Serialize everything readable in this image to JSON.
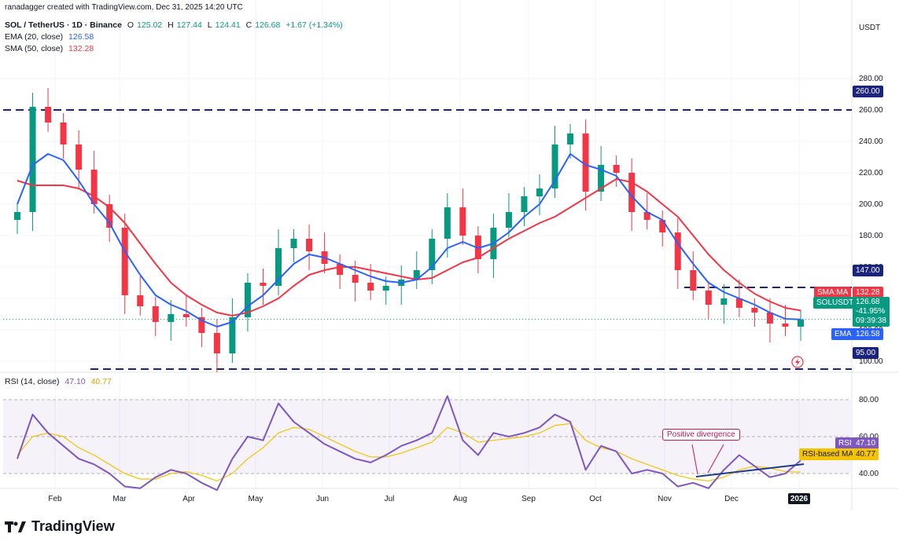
{
  "header": {
    "credit": "ranadagger created with TradingView.com, Dec 31, 2025 14:20 UTC",
    "symbol": "SOL / TetherUS · 1D · Binance",
    "o_label": "O",
    "o": "125.02",
    "h_label": "H",
    "h": "127.44",
    "l_label": "L",
    "l": "124.41",
    "c_label": "C",
    "c": "126.68",
    "change": "+1.67 (+1.34%)",
    "ema_label": "EMA (20, close)",
    "ema_value": "126.58",
    "sma_label": "SMA (50, close)",
    "sma_value": "132.28",
    "rsi_label": "RSI (14, close)",
    "rsi_value": "47.10",
    "rsi_ma_value": "40.77"
  },
  "axis_tags": {
    "currency": "USDT",
    "level_260": "260.00",
    "level_147": "147.00",
    "level_95": "95.00",
    "sma_tag": "SMA:MA",
    "sma_tag_value": "132.28",
    "price_tag": "SOLUSDT",
    "price_value": "126.68",
    "price_change": "-41.95%",
    "countdown": "09:39:38",
    "ema_tag": "EMA",
    "ema_tag_value": "126.58",
    "rsi_tag": "RSI",
    "rsi_tag_value": "47.10",
    "rsi_ma_tag": "RSI-based MA",
    "rsi_ma_tag_value": "40.77"
  },
  "annotation": "Positive divergence",
  "footer": {
    "brand": "TradingView"
  },
  "colors": {
    "candle_up": "#089981",
    "candle_down": "#f23645",
    "ema": "#2962ff",
    "sma": "#f23645",
    "rsi": "#7e57c2",
    "rsi_ma": "#f5c400",
    "level_line": "#1a237e",
    "divergence_line": "#1e3a8a"
  },
  "chart_data": [
    {
      "type": "candlestick",
      "title": "SOL / TetherUS · 1D · Binance",
      "ylabel": "USDT",
      "x_ticks": [
        "Feb",
        "Mar",
        "Apr",
        "May",
        "Jun",
        "Jul",
        "Aug",
        "Sep",
        "Oct",
        "Nov",
        "Dec",
        "2026"
      ],
      "y_ticks": [
        100,
        120,
        140,
        160,
        180,
        200,
        220,
        240,
        260,
        280
      ],
      "ylim": [
        95,
        290
      ],
      "horizontal_levels": [
        260,
        147,
        95
      ],
      "last": {
        "open": 125.02,
        "high": 127.44,
        "low": 124.41,
        "close": 126.68,
        "change": 1.67,
        "change_pct": 1.34
      },
      "x": [
        "2025-01-10",
        "2025-01-18",
        "2025-01-20",
        "2025-01-27",
        "2025-02-03",
        "2025-02-10",
        "2025-02-17",
        "2025-02-24",
        "2025-03-03",
        "2025-03-10",
        "2025-03-17",
        "2025-03-24",
        "2025-03-31",
        "2025-04-07",
        "2025-04-14",
        "2025-04-21",
        "2025-04-28",
        "2025-05-05",
        "2025-05-12",
        "2025-05-19",
        "2025-05-26",
        "2025-06-02",
        "2025-06-09",
        "2025-06-16",
        "2025-06-23",
        "2025-06-30",
        "2025-07-07",
        "2025-07-14",
        "2025-07-21",
        "2025-07-28",
        "2025-08-04",
        "2025-08-11",
        "2025-08-18",
        "2025-08-25",
        "2025-09-01",
        "2025-09-08",
        "2025-09-15",
        "2025-09-22",
        "2025-09-29",
        "2025-10-06",
        "2025-10-13",
        "2025-10-20",
        "2025-10-27",
        "2025-11-03",
        "2025-11-10",
        "2025-11-17",
        "2025-11-24",
        "2025-12-01",
        "2025-12-08",
        "2025-12-15",
        "2025-12-22",
        "2025-12-31"
      ],
      "series": [
        {
          "name": "SOL / TetherUS",
          "values": [
            195,
            262,
            252,
            238,
            222,
            200,
            185,
            142,
            135,
            125,
            130,
            128,
            118,
            105,
            128,
            150,
            148,
            172,
            178,
            170,
            162,
            155,
            150,
            145,
            148,
            152,
            158,
            178,
            198,
            180,
            165,
            185,
            195,
            205,
            210,
            238,
            245,
            208,
            225,
            220,
            195,
            190,
            182,
            158,
            145,
            136,
            140,
            134,
            131,
            124,
            122,
            126.68
          ]
        },
        {
          "name": "EMA (20, close)",
          "values": [
            200,
            225,
            232,
            228,
            215,
            200,
            188,
            170,
            155,
            142,
            136,
            132,
            126,
            122,
            125,
            135,
            142,
            152,
            162,
            168,
            166,
            162,
            158,
            154,
            151,
            150,
            152,
            160,
            172,
            176,
            172,
            175,
            182,
            192,
            200,
            215,
            232,
            225,
            222,
            218,
            205,
            195,
            190,
            175,
            162,
            150,
            144,
            140,
            136,
            131,
            127,
            126.58
          ]
        },
        {
          "name": "SMA (50, close)",
          "values": [
            215,
            212,
            212,
            212,
            210,
            205,
            198,
            188,
            175,
            162,
            150,
            142,
            136,
            131,
            129,
            131,
            135,
            140,
            148,
            155,
            158,
            160,
            160,
            158,
            156,
            154,
            152,
            153,
            158,
            163,
            166,
            172,
            178,
            183,
            188,
            192,
            198,
            204,
            210,
            216,
            214,
            208,
            200,
            192,
            180,
            168,
            158,
            150,
            143,
            138,
            134,
            132.28
          ]
        }
      ]
    },
    {
      "type": "line",
      "title": "RSI (14, close)",
      "y_ticks": [
        40,
        60,
        80
      ],
      "ylim": [
        30,
        85
      ],
      "band": [
        30,
        70
      ],
      "series": [
        {
          "name": "RSI",
          "values": [
            48,
            72,
            62,
            55,
            48,
            45,
            40,
            33,
            32,
            38,
            42,
            40,
            35,
            31,
            48,
            60,
            58,
            78,
            68,
            62,
            56,
            52,
            48,
            46,
            50,
            55,
            58,
            62,
            82,
            58,
            50,
            62,
            60,
            62,
            65,
            72,
            68,
            42,
            55,
            52,
            40,
            42,
            40,
            33,
            35,
            32,
            42,
            50,
            44,
            38,
            40,
            47.1
          ]
        },
        {
          "name": "RSI-based MA",
          "values": [
            50,
            60,
            62,
            60,
            54,
            50,
            45,
            40,
            37,
            37,
            40,
            41,
            39,
            36,
            40,
            48,
            54,
            62,
            65,
            64,
            60,
            56,
            52,
            49,
            49,
            51,
            54,
            57,
            65,
            62,
            57,
            58,
            59,
            60,
            62,
            66,
            67,
            58,
            54,
            52,
            48,
            45,
            42,
            39,
            37,
            36,
            38,
            42,
            44,
            43,
            41,
            40.77
          ]
        }
      ]
    }
  ]
}
